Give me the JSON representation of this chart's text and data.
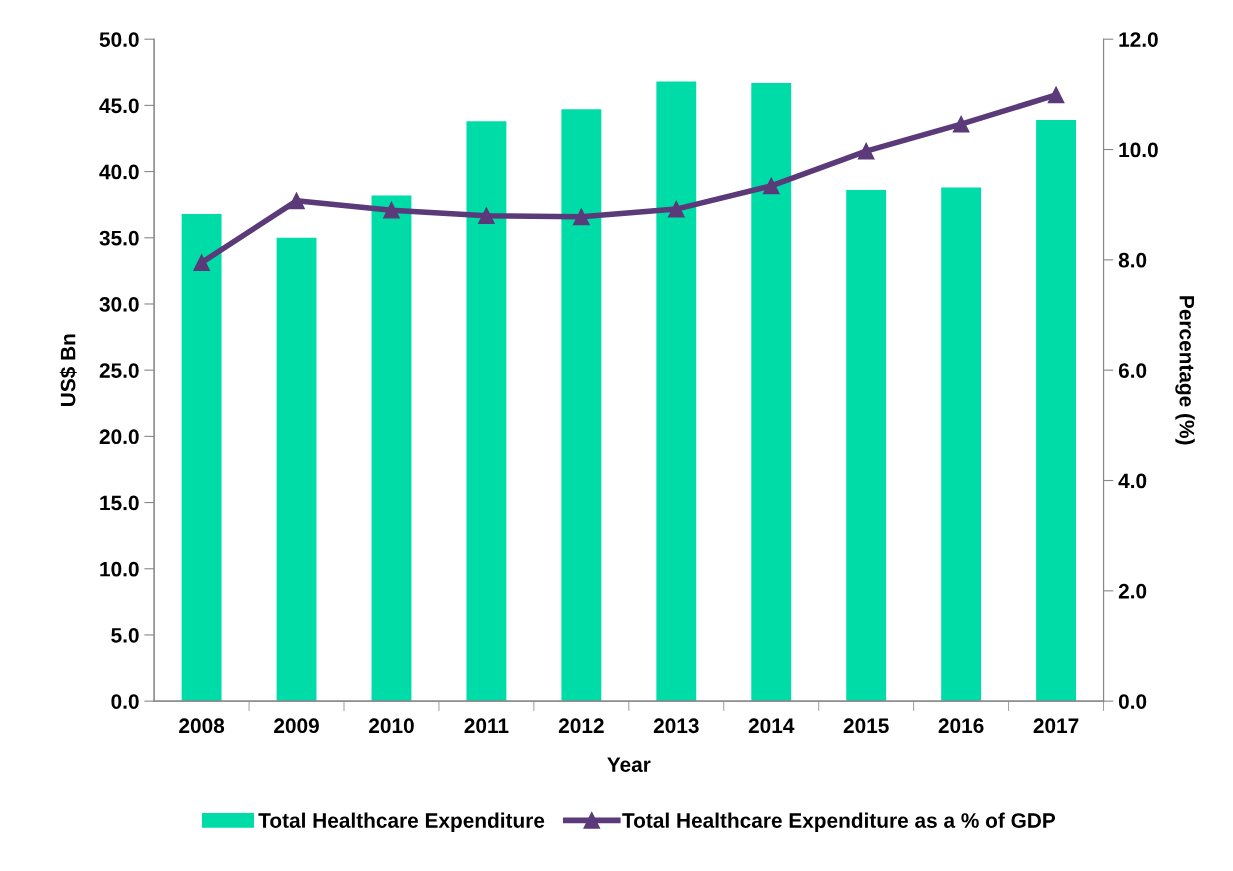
{
  "chart_data": {
    "type": "bar",
    "xlabel": "Year",
    "ylabel": "US$ Bn",
    "y2label": "Percentage (%)",
    "categories": [
      "2008",
      "2009",
      "2010",
      "2011",
      "2012",
      "2013",
      "2014",
      "2015",
      "2016",
      "2017"
    ],
    "series": [
      {
        "name": "Total Healthcare Expenditure",
        "color": "#00dca8",
        "values": [
          36.8,
          35.0,
          38.2,
          43.8,
          44.7,
          46.8,
          46.7,
          38.6,
          38.8,
          43.9
        ]
      },
      {
        "name": "Total Healthcare Expenditure as a % of GDP",
        "type": "line",
        "axis": "y2",
        "color": "#5b3a7a",
        "marker": "triangle",
        "values": [
          7.95,
          9.07,
          8.9,
          8.8,
          8.78,
          8.92,
          9.34,
          9.97,
          10.46,
          10.99
        ]
      }
    ],
    "ylim": [
      0,
      50
    ],
    "yticks": [
      {
        "value": 0,
        "label": "0.0"
      },
      {
        "value": 5,
        "label": "5.0"
      },
      {
        "value": 10,
        "label": "10.0"
      },
      {
        "value": 15,
        "label": "15.0"
      },
      {
        "value": 20,
        "label": "20.0"
      },
      {
        "value": 25,
        "label": "25.0"
      },
      {
        "value": 30,
        "label": "30.0"
      },
      {
        "value": 35,
        "label": "35.0"
      },
      {
        "value": 40,
        "label": "40.0"
      },
      {
        "value": 45,
        "label": "45.0"
      },
      {
        "value": 50,
        "label": "50.0"
      }
    ],
    "y2lim": [
      0,
      12
    ],
    "y2ticks": [
      {
        "value": 0,
        "label": "0.0"
      },
      {
        "value": 2,
        "label": "2.0"
      },
      {
        "value": 4,
        "label": "4.0"
      },
      {
        "value": 6,
        "label": "6.0"
      },
      {
        "value": 8,
        "label": "8.0"
      },
      {
        "value": 10,
        "label": "10.0"
      },
      {
        "value": 12,
        "label": "12.0"
      }
    ],
    "grid": false,
    "legend": "bottom"
  }
}
